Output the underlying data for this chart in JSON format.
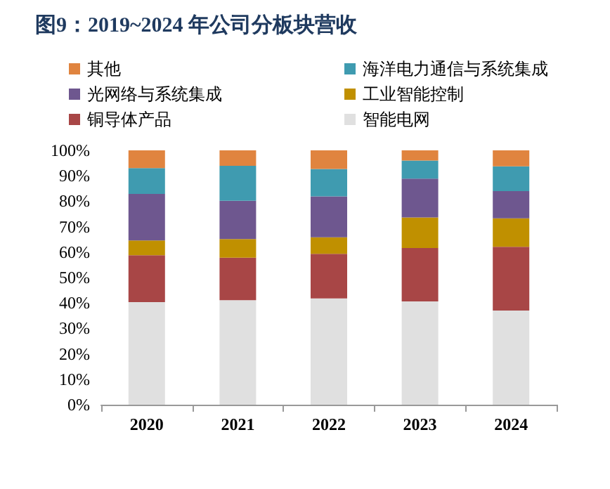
{
  "chart_data": {
    "type": "bar",
    "title": "图9：2019~2024 年公司分板块营收",
    "stacked": true,
    "grid": false,
    "legend": "top",
    "categories": [
      "2020",
      "2021",
      "2022",
      "2023",
      "2024"
    ],
    "series": [
      {
        "name": "智能电网",
        "color": "#e0e0e0",
        "values": [
          40.3,
          41.1,
          41.8,
          40.6,
          37.0
        ]
      },
      {
        "name": "铜导体产品",
        "color": "#a84646",
        "values": [
          18.5,
          16.7,
          17.5,
          21.0,
          25.1
        ]
      },
      {
        "name": "工业智能控制",
        "color": "#c09000",
        "values": [
          5.8,
          7.3,
          6.5,
          12.0,
          11.2
        ]
      },
      {
        "name": "光网络与系统集成",
        "color": "#6e578f",
        "values": [
          18.3,
          15.1,
          16.1,
          15.3,
          10.7
        ]
      },
      {
        "name": "海洋电力通信与系统集成",
        "color": "#3f9bb0",
        "values": [
          10.1,
          13.7,
          10.8,
          7.1,
          9.7
        ]
      },
      {
        "name": "其他",
        "color": "#e0843f",
        "values": [
          7.0,
          6.1,
          7.3,
          4.0,
          6.3
        ]
      }
    ],
    "ylim": [
      0,
      100
    ],
    "yticks": [
      {
        "value": 0,
        "label": "0%"
      },
      {
        "value": 10,
        "label": "10%"
      },
      {
        "value": 20,
        "label": "20%"
      },
      {
        "value": 30,
        "label": "30%"
      },
      {
        "value": 40,
        "label": "40%"
      },
      {
        "value": 50,
        "label": "50%"
      },
      {
        "value": 60,
        "label": "60%"
      },
      {
        "value": 70,
        "label": "70%"
      },
      {
        "value": 80,
        "label": "80%"
      },
      {
        "value": 90,
        "label": "90%"
      },
      {
        "value": 100,
        "label": "100%"
      }
    ]
  }
}
